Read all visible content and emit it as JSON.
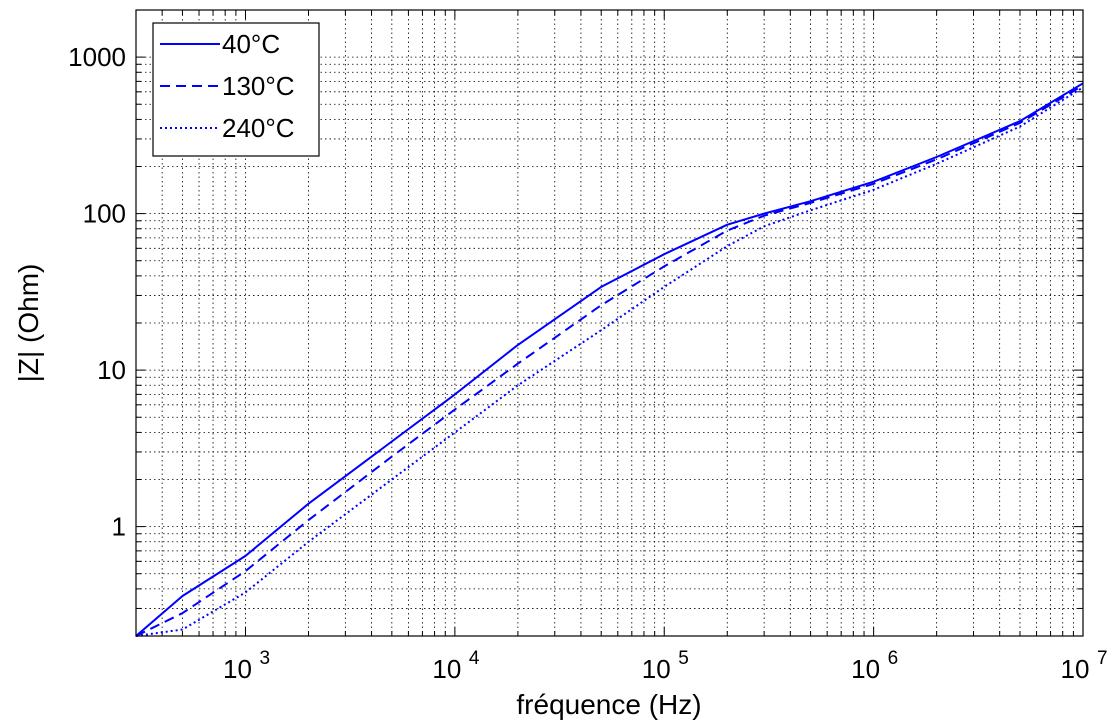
{
  "chart_data": {
    "type": "line",
    "title": "",
    "xlabel": "fréquence (Hz)",
    "ylabel": "|Z| (Ohm)",
    "xscale": "log",
    "yscale": "log",
    "xlim": [
      300,
      10000000
    ],
    "ylim": [
      0.2,
      2000
    ],
    "grid": true,
    "legend_position": "top-left",
    "color": "#0000ff",
    "x_ticks": [
      {
        "value": 1000,
        "base": "10",
        "exp": "3"
      },
      {
        "value": 10000,
        "base": "10",
        "exp": "4"
      },
      {
        "value": 100000,
        "base": "10",
        "exp": "5"
      },
      {
        "value": 1000000,
        "base": "10",
        "exp": "6"
      },
      {
        "value": 10000000,
        "base": "10",
        "exp": "7"
      }
    ],
    "y_ticks": [
      {
        "value": 1,
        "label": "1"
      },
      {
        "value": 10,
        "label": "10"
      },
      {
        "value": 100,
        "label": "100"
      },
      {
        "value": 1000,
        "label": "1000"
      }
    ],
    "x": [
      300,
      500,
      1000,
      2000,
      5000,
      10000,
      20000,
      50000,
      100000,
      200000,
      300000,
      500000,
      1000000,
      2000000,
      5000000,
      10000000
    ],
    "series": [
      {
        "name": "40°C",
        "line_style": "solid",
        "values": [
          0.2,
          0.36,
          0.65,
          1.4,
          3.5,
          7,
          14.5,
          34,
          55,
          85,
          100,
          120,
          160,
          230,
          390,
          680
        ]
      },
      {
        "name": "130°C",
        "line_style": "dashed",
        "values": [
          0.2,
          0.28,
          0.52,
          1.1,
          2.8,
          5.6,
          11,
          26,
          46,
          78,
          97,
          117,
          155,
          222,
          380,
          660
        ]
      },
      {
        "name": "240°C",
        "line_style": "dotted",
        "values": [
          0.2,
          0.22,
          0.38,
          0.8,
          2.0,
          4.0,
          8,
          18,
          34,
          62,
          83,
          105,
          142,
          208,
          360,
          640
        ]
      }
    ]
  }
}
